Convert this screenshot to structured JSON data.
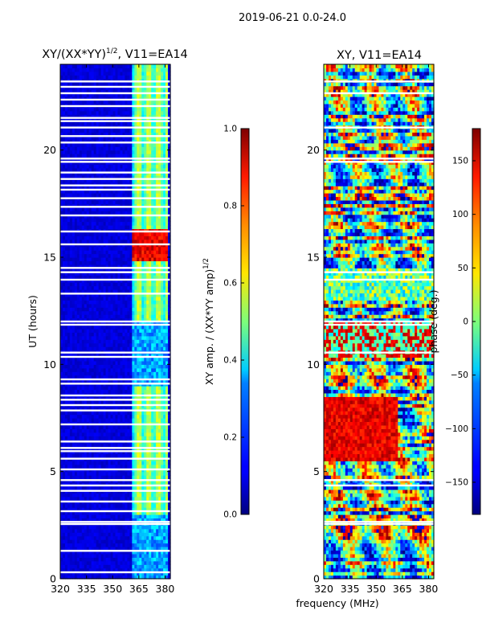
{
  "suptitle": "2019-06-21 0.0-24.0",
  "chart_data": [
    {
      "type": "heatmap",
      "title_main": "XY/(XX*YY)",
      "title_exp": "1/2",
      "title_suffix": ", V11=EA14",
      "xlabel": "",
      "ylabel": "UT (hours)",
      "xlim": [
        320,
        383
      ],
      "ylim": [
        0,
        24
      ],
      "xticks": [
        320,
        335,
        350,
        365,
        380
      ],
      "yticks": [
        0,
        5,
        10,
        15,
        20
      ],
      "colorbar": {
        "label_main": "XY amp. / (XX*YY amp)",
        "label_exp": "1/2",
        "range": [
          0.0,
          1.0
        ],
        "ticks": [
          0.0,
          0.2,
          0.4,
          0.6,
          0.8,
          1.0
        ],
        "tick_labels": [
          "0.0",
          "0.2",
          "0.4",
          "0.6",
          "0.8",
          "1.0"
        ],
        "colormap": "jet"
      },
      "gaps_hours": [
        0.3,
        1.3,
        2.55,
        2.65,
        3.15,
        3.6,
        4.1,
        4.35,
        4.6,
        5.1,
        5.6,
        5.95,
        6.1,
        6.4,
        7.2,
        7.85,
        8.1,
        8.35,
        8.55,
        9.1,
        9.3,
        10.35,
        10.55,
        11.85,
        12.0,
        13.3,
        13.95,
        14.3,
        14.5,
        15.6,
        16.2,
        16.95,
        17.35,
        17.75,
        18.15,
        18.35,
        18.65,
        18.95,
        19.45,
        19.6,
        20.35,
        20.65,
        21.05,
        21.35,
        21.5,
        22.05,
        22.35,
        22.65,
        22.95,
        23.2
      ],
      "feature": "bright channels near 362-382 MHz; saturated band near 15-16.5 hours",
      "value_range_observed": [
        0.0,
        1.0
      ]
    },
    {
      "type": "heatmap",
      "title": "XY, V11=EA14",
      "xlabel": "frequency (MHz)",
      "ylabel": "",
      "xlim": [
        320,
        383
      ],
      "ylim": [
        0,
        24
      ],
      "xticks": [
        320,
        335,
        350,
        365,
        380
      ],
      "yticks": [
        0,
        5,
        10,
        15,
        20
      ],
      "colorbar": {
        "label": "phase (deg.)",
        "range": [
          -180,
          180
        ],
        "ticks": [
          -150,
          -100,
          -50,
          0,
          50,
          100,
          150
        ],
        "tick_labels": [
          "−150",
          "−100",
          "−50",
          "0",
          "50",
          "100",
          "150"
        ],
        "colormap": "jet"
      },
      "gaps_hours": [
        2.55,
        2.65,
        4.35,
        4.6,
        10.55,
        11.85,
        12.0,
        13.95,
        14.3,
        19.45,
        19.6,
        21.05,
        22.65,
        23.2
      ],
      "value_range_observed": [
        -180,
        180
      ]
    }
  ]
}
